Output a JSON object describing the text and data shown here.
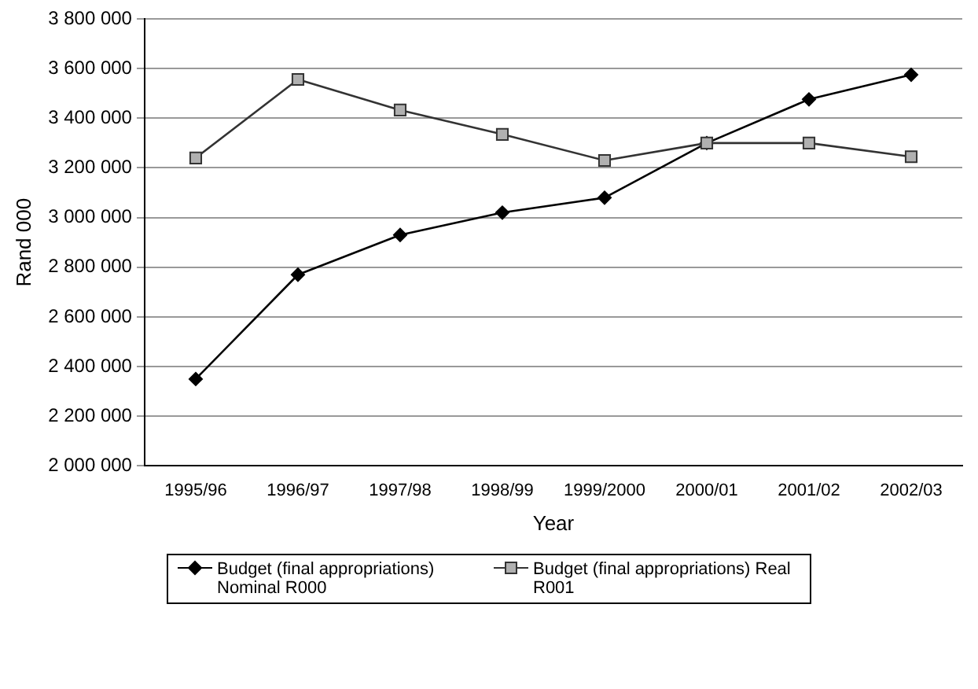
{
  "chart_data": {
    "type": "line",
    "xlabel": "Year",
    "ylabel": "Rand 000",
    "categories": [
      "1995/96",
      "1996/97",
      "1997/98",
      "1998/99",
      "1999/2000",
      "2000/01",
      "2001/02",
      "2002/03"
    ],
    "series": [
      {
        "name": "Budget (final appropriations) Nominal R000",
        "color": "#000000",
        "marker": "diamond",
        "values": [
          2350000,
          2770000,
          2930000,
          3020000,
          3080000,
          3300000,
          3476000,
          3575000
        ]
      },
      {
        "name": "Budget (final appropriations) Real R001",
        "color": "#333333",
        "marker": "square",
        "values": [
          3240000,
          3556000,
          3433000,
          3335000,
          3230000,
          3300000,
          3300000,
          3245000
        ]
      }
    ],
    "ylim": [
      2000000,
      3800000
    ],
    "yticks": [
      2000000,
      2200000,
      2400000,
      2600000,
      2800000,
      3000000,
      3200000,
      3400000,
      3600000,
      3800000
    ],
    "grid": "y",
    "legend": "bottom",
    "line_style": "solid"
  }
}
